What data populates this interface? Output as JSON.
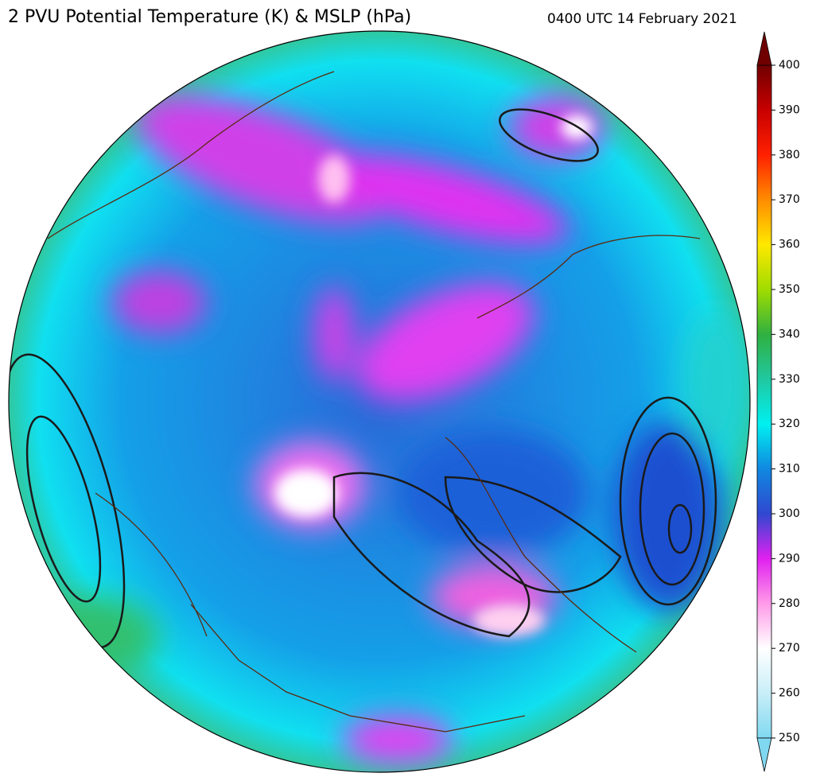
{
  "header": {
    "title": "2 PVU Potential Temperature (K) & MSLP (hPa)",
    "timestamp": "0400 UTC 14 February 2021"
  },
  "colorbar": {
    "range": [
      250,
      400
    ],
    "ticks": [
      250,
      260,
      270,
      280,
      290,
      300,
      310,
      320,
      330,
      340,
      350,
      360,
      370,
      380,
      390,
      400
    ],
    "colors": [
      "#80d8f0",
      "#c8eef8",
      "#ffffff",
      "#ff9ae8",
      "#e020f0",
      "#3048d0",
      "#1088e0",
      "#00f0f0",
      "#20c8a0",
      "#30b040",
      "#a0dc00",
      "#ffe800",
      "#ff8c00",
      "#ff2000",
      "#c80000",
      "#700000"
    ]
  }
}
